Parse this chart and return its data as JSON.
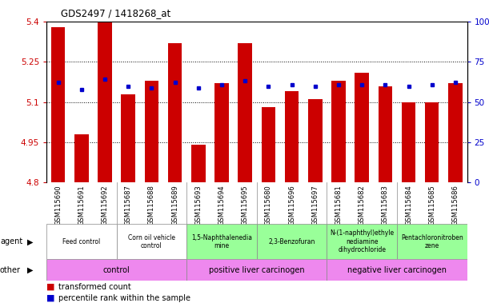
{
  "title": "GDS2497 / 1418268_at",
  "samples": [
    "GSM115690",
    "GSM115691",
    "GSM115692",
    "GSM115687",
    "GSM115688",
    "GSM115689",
    "GSM115693",
    "GSM115694",
    "GSM115695",
    "GSM115680",
    "GSM115696",
    "GSM115697",
    "GSM115681",
    "GSM115682",
    "GSM115683",
    "GSM115684",
    "GSM115685",
    "GSM115686"
  ],
  "transformed_count": [
    5.38,
    4.98,
    5.4,
    5.13,
    5.18,
    5.32,
    4.94,
    5.17,
    5.32,
    5.08,
    5.14,
    5.11,
    5.18,
    5.21,
    5.16,
    5.1,
    5.1,
    5.17
  ],
  "percentile_rank": [
    62,
    58,
    64,
    60,
    59,
    62,
    59,
    61,
    63,
    60,
    61,
    60,
    61,
    61,
    61,
    60,
    61,
    62
  ],
  "ylim_left": [
    4.8,
    5.4
  ],
  "ylim_right": [
    0,
    100
  ],
  "yticks_left": [
    4.8,
    4.95,
    5.1,
    5.25,
    5.4
  ],
  "yticks_right": [
    0,
    25,
    50,
    75,
    100
  ],
  "agent_groups": [
    {
      "label": "Feed control",
      "start": 0,
      "end": 3,
      "color": "#ffffff"
    },
    {
      "label": "Corn oil vehicle\ncontrol",
      "start": 3,
      "end": 6,
      "color": "#ffffff"
    },
    {
      "label": "1,5-Naphthalenedia\nmine",
      "start": 6,
      "end": 9,
      "color": "#99ff99"
    },
    {
      "label": "2,3-Benzofuran",
      "start": 9,
      "end": 12,
      "color": "#99ff99"
    },
    {
      "label": "N-(1-naphthyl)ethyle\nnediamine\ndihydrochloride",
      "start": 12,
      "end": 15,
      "color": "#99ff99"
    },
    {
      "label": "Pentachloronitroben\nzene",
      "start": 15,
      "end": 18,
      "color": "#99ff99"
    }
  ],
  "other_groups": [
    {
      "label": "control",
      "start": 0,
      "end": 6,
      "color": "#ee88ee"
    },
    {
      "label": "positive liver carcinogen",
      "start": 6,
      "end": 12,
      "color": "#ee88ee"
    },
    {
      "label": "negative liver carcinogen",
      "start": 12,
      "end": 18,
      "color": "#ee88ee"
    }
  ],
  "bar_color": "#cc0000",
  "dot_color": "#0000cc",
  "baseline": 4.8,
  "tick_label_color_left": "#cc0000",
  "tick_label_color_right": "#0000cc",
  "xtick_bg_color": "#cccccc",
  "agent_border_color": "#aaaaaa",
  "other_border_color": "#aaaaaa"
}
